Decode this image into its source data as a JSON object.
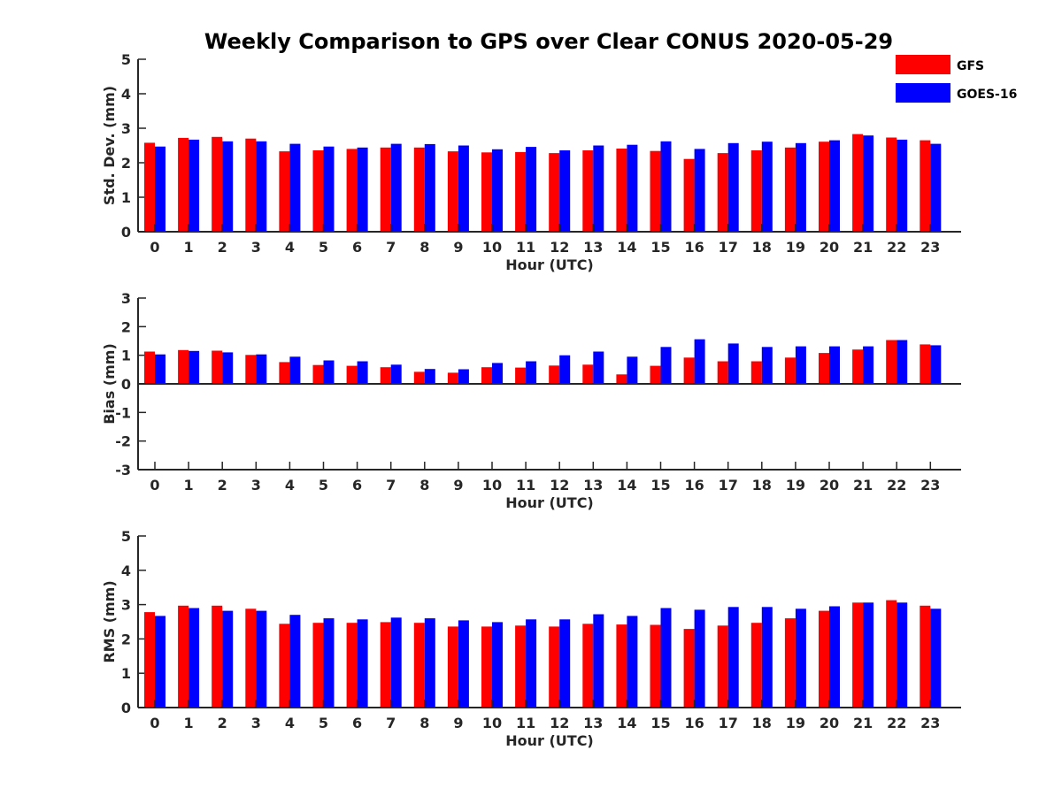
{
  "chart_data": {
    "title": "Weekly Comparison to GPS over Clear CONUS 2020-05-29",
    "type": "bar",
    "legend": {
      "position": "top-right",
      "entries": [
        {
          "name": "GFS",
          "color": "#ff0000"
        },
        {
          "name": "GOES-16",
          "color": "#0000ff"
        }
      ]
    },
    "panels": [
      {
        "type": "bar",
        "xlabel": "Hour (UTC)",
        "ylabel": "Std. Dev. (mm)",
        "ylim": [
          0,
          5
        ],
        "yticks": [
          "0",
          "1",
          "2",
          "3",
          "4",
          "5"
        ],
        "categories": [
          "0",
          "1",
          "2",
          "3",
          "4",
          "5",
          "6",
          "7",
          "8",
          "9",
          "10",
          "11",
          "12",
          "13",
          "14",
          "15",
          "16",
          "17",
          "18",
          "19",
          "20",
          "21",
          "22",
          "23"
        ],
        "series": [
          {
            "name": "GFS",
            "values": [
              2.58,
              2.72,
              2.75,
              2.7,
              2.33,
              2.36,
              2.4,
              2.44,
              2.44,
              2.33,
              2.3,
              2.31,
              2.28,
              2.36,
              2.41,
              2.34,
              2.11,
              2.28,
              2.36,
              2.44,
              2.61,
              2.83,
              2.73,
              2.65
            ]
          },
          {
            "name": "GOES-16",
            "values": [
              2.47,
              2.67,
              2.62,
              2.62,
              2.55,
              2.47,
              2.44,
              2.55,
              2.54,
              2.5,
              2.39,
              2.46,
              2.36,
              2.5,
              2.52,
              2.62,
              2.4,
              2.57,
              2.61,
              2.57,
              2.65,
              2.79,
              2.67,
              2.55
            ]
          }
        ]
      },
      {
        "type": "bar",
        "xlabel": "Hour (UTC)",
        "ylabel": "Bias (mm)",
        "ylim": [
          -3,
          3
        ],
        "yticks": [
          "-3",
          "-2",
          "-1",
          "0",
          "1",
          "2",
          "3"
        ],
        "categories": [
          "0",
          "1",
          "2",
          "3",
          "4",
          "5",
          "6",
          "7",
          "8",
          "9",
          "10",
          "11",
          "12",
          "13",
          "14",
          "15",
          "16",
          "17",
          "18",
          "19",
          "20",
          "21",
          "22",
          "23"
        ],
        "series": [
          {
            "name": "GFS",
            "values": [
              1.13,
              1.18,
              1.16,
              1.01,
              0.76,
              0.66,
              0.63,
              0.58,
              0.42,
              0.39,
              0.58,
              0.57,
              0.64,
              0.67,
              0.33,
              0.63,
              0.92,
              0.79,
              0.79,
              0.92,
              1.08,
              1.2,
              1.53,
              1.38
            ]
          },
          {
            "name": "GOES-16",
            "values": [
              1.03,
              1.15,
              1.1,
              1.03,
              0.95,
              0.82,
              0.79,
              0.67,
              0.52,
              0.51,
              0.73,
              0.79,
              1.0,
              1.13,
              0.95,
              1.29,
              1.56,
              1.41,
              1.29,
              1.31,
              1.31,
              1.31,
              1.53,
              1.35
            ]
          }
        ]
      },
      {
        "type": "bar",
        "xlabel": "Hour (UTC)",
        "ylabel": "RMS (mm)",
        "ylim": [
          0,
          5
        ],
        "yticks": [
          "0",
          "1",
          "2",
          "3",
          "4",
          "5"
        ],
        "categories": [
          "0",
          "1",
          "2",
          "3",
          "4",
          "5",
          "6",
          "7",
          "8",
          "9",
          "10",
          "11",
          "12",
          "13",
          "14",
          "15",
          "16",
          "17",
          "18",
          "19",
          "20",
          "21",
          "22",
          "23"
        ],
        "series": [
          {
            "name": "GFS",
            "values": [
              2.78,
              2.97,
              2.97,
              2.88,
              2.44,
              2.47,
              2.47,
              2.49,
              2.47,
              2.36,
              2.36,
              2.39,
              2.36,
              2.44,
              2.42,
              2.41,
              2.29,
              2.39,
              2.47,
              2.6,
              2.82,
              3.06,
              3.13,
              2.97
            ]
          },
          {
            "name": "GOES-16",
            "values": [
              2.67,
              2.9,
              2.82,
              2.82,
              2.7,
              2.6,
              2.57,
              2.62,
              2.6,
              2.54,
              2.49,
              2.57,
              2.57,
              2.72,
              2.67,
              2.9,
              2.85,
              2.93,
              2.93,
              2.88,
              2.95,
              3.06,
              3.06,
              2.88
            ]
          }
        ]
      }
    ]
  }
}
